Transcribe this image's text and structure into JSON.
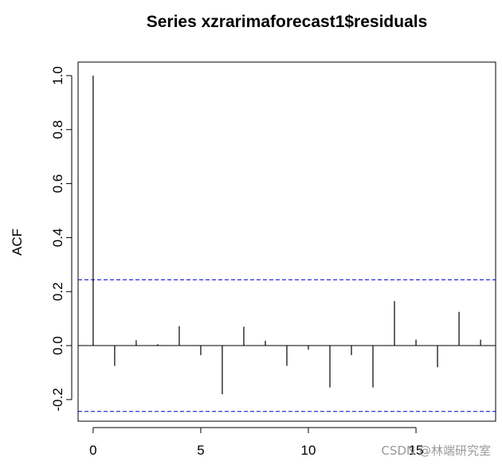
{
  "chart_data": {
    "type": "bar",
    "title": "Series  xzrarimaforecast1$residuals",
    "xlabel": "",
    "ylabel": "ACF",
    "xlim": [
      -0.7,
      18.7
    ],
    "ylim": [
      -0.28,
      1.05
    ],
    "x_ticks": [
      0,
      5,
      10,
      15
    ],
    "x_tick_labels": [
      "0",
      "5",
      "10",
      "15"
    ],
    "y_ticks": [
      -0.2,
      0.0,
      0.2,
      0.4,
      0.6,
      0.8,
      1.0
    ],
    "y_tick_labels": [
      "-0.2",
      "0.0",
      "0.2",
      "0.4",
      "0.6",
      "0.8",
      "1.0"
    ],
    "lags": [
      0,
      1,
      2,
      3,
      4,
      5,
      6,
      7,
      8,
      9,
      10,
      11,
      12,
      13,
      14,
      15,
      16,
      17,
      18
    ],
    "values": [
      1.0,
      -0.075,
      0.02,
      0.005,
      0.072,
      -0.035,
      -0.18,
      0.07,
      0.018,
      -0.075,
      -0.015,
      -0.155,
      -0.035,
      -0.155,
      0.165,
      0.022,
      -0.08,
      0.125,
      0.022
    ],
    "confidence_bounds": [
      0.244,
      -0.244
    ],
    "zero_line": 0,
    "grid": false,
    "colors": {
      "bars": "#000000",
      "bounds": "#0000cc"
    }
  },
  "watermark": "CSDN @林端研究室"
}
